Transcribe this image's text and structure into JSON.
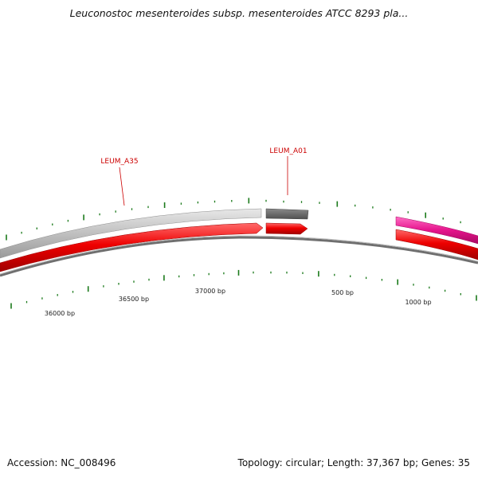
{
  "title": "Leuconostoc mesenteroides subsp. mesenteroides ATCC 8293 pla...",
  "footer": {
    "accession": "Accession: NC_008496",
    "summary": "Topology: circular; Length: 37,367 bp; Genes: 35"
  },
  "colors": {
    "forward_gene": "#ee0000",
    "reverse_gray": "#c4c4c4",
    "selected_gene": "#707070",
    "pink_gene": "#e5148c",
    "backbone": "#888888",
    "tick": "#1b7a1b",
    "label": "#cc0000"
  },
  "scale_labels": [
    "36000 bp",
    "36500 bp",
    "37000 bp",
    "500 bp",
    "1000 bp"
  ],
  "gene_labels": [
    "LEUM_A35",
    "LEUM_A01"
  ]
}
